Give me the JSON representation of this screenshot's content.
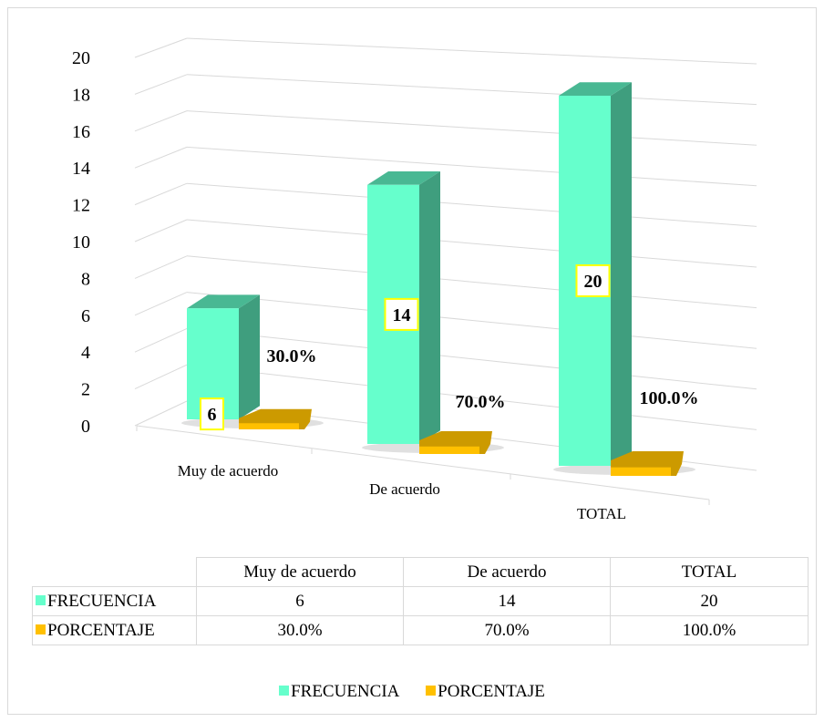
{
  "chart_data": {
    "type": "bar",
    "categories": [
      "Muy de acuerdo",
      "De acuerdo",
      "TOTAL"
    ],
    "series": [
      {
        "name": "FRECUENCIA",
        "values": [
          6,
          14,
          20
        ],
        "labels": [
          "6",
          "14",
          "20"
        ],
        "color": "#66FFCC"
      },
      {
        "name": "PORCENTAJE",
        "values": [
          0.3,
          0.7,
          1.0
        ],
        "labels": [
          "30.0%",
          "70.0%",
          "100.0%"
        ],
        "color": "#FFC000"
      }
    ],
    "ylim": [
      0,
      20
    ],
    "yticks": [
      "0",
      "2",
      "4",
      "6",
      "8",
      "10",
      "12",
      "14",
      "16",
      "18",
      "20"
    ],
    "grid": true,
    "legend": "bottom",
    "data_table": {
      "headers": [
        "Muy de acuerdo",
        "De acuerdo",
        "TOTAL"
      ],
      "rows": [
        {
          "name": "FRECUENCIA",
          "values": [
            "6",
            "14",
            "20"
          ]
        },
        {
          "name": "PORCENTAJE",
          "values": [
            "30.0%",
            "70.0%",
            "100.0%"
          ]
        }
      ]
    }
  }
}
